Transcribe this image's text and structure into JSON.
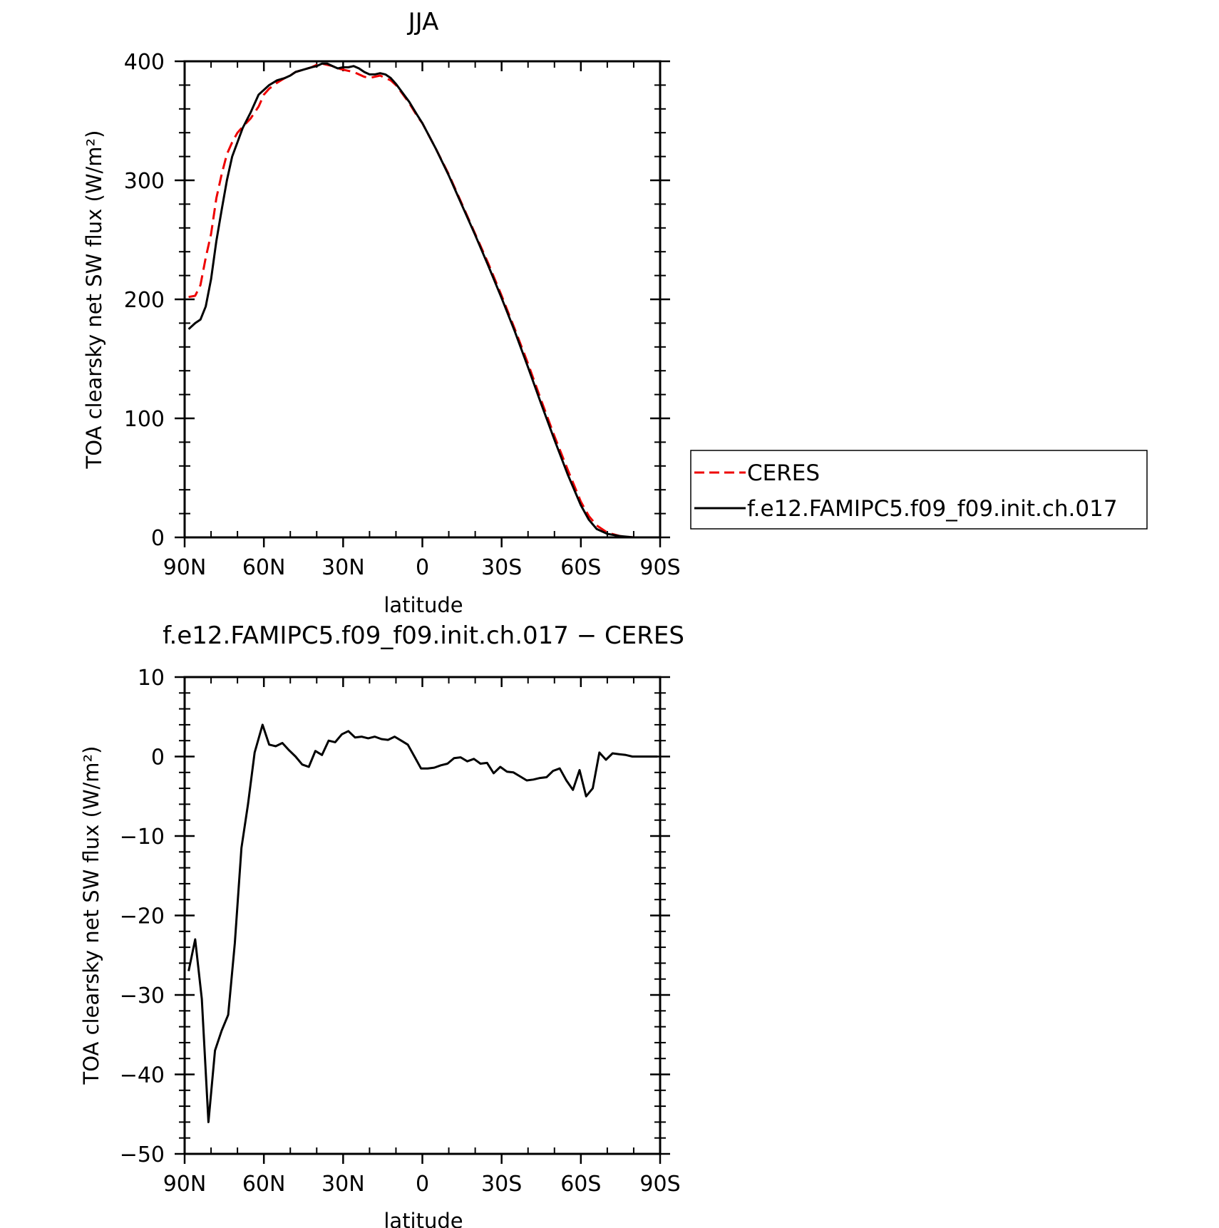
{
  "chart_data": [
    {
      "type": "line",
      "title": "JJA",
      "xlabel": "latitude",
      "ylabel": "TOA clearsky net SW flux (W/m²)",
      "xlim": [
        90,
        -90
      ],
      "ylim": [
        0,
        400
      ],
      "x_ticks": [
        90,
        60,
        30,
        0,
        -30,
        -60,
        -90
      ],
      "x_tick_labels": [
        "90N",
        "60N",
        "30N",
        "0",
        "30S",
        "60S",
        "90S"
      ],
      "y_ticks": [
        0,
        100,
        200,
        300,
        400
      ],
      "y_tick_labels": [
        "0",
        "100",
        "200",
        "300",
        "400"
      ],
      "legend": {
        "placement": "right"
      },
      "series": [
        {
          "name": "CERES",
          "color": "#ee0000",
          "style": "dashed",
          "x": [
            88.5,
            86,
            84,
            82,
            80,
            78,
            76,
            74,
            72,
            70,
            68,
            65,
            62,
            60,
            58,
            55,
            52,
            50,
            48,
            45,
            42,
            40,
            38,
            36,
            34,
            32,
            30,
            28,
            26,
            24,
            22,
            20,
            18,
            16,
            14,
            12,
            10,
            8,
            5,
            2,
            0,
            -5,
            -10,
            -15,
            -20,
            -25,
            -30,
            -35,
            -40,
            -45,
            -50,
            -55,
            -60,
            -63,
            -66,
            -70,
            -75,
            -80,
            -85,
            -89
          ],
          "values": [
            202,
            203,
            212,
            235,
            255,
            285,
            305,
            322,
            332,
            340,
            345,
            352,
            362,
            372,
            377,
            382,
            386,
            388,
            391,
            393,
            395,
            397,
            398,
            397,
            396,
            394,
            393,
            392,
            391,
            389,
            387,
            386,
            387,
            388,
            386,
            384,
            380,
            374,
            365,
            354,
            348,
            327,
            305,
            280,
            255,
            230,
            203,
            175,
            146,
            115,
            85,
            57,
            30,
            18,
            10,
            4,
            1,
            0,
            0,
            0
          ]
        },
        {
          "name": "f.e12.FAMIPC5.f09_f09.init.ch.017",
          "color": "#000000",
          "style": "solid",
          "x": [
            88.5,
            86,
            84,
            82,
            80,
            78,
            76,
            74,
            72,
            70,
            68,
            65,
            62,
            60,
            58,
            55,
            52,
            50,
            48,
            45,
            42,
            40,
            38,
            36,
            34,
            32,
            30,
            28,
            26,
            24,
            22,
            20,
            18,
            16,
            14,
            12,
            10,
            8,
            5,
            2,
            0,
            -5,
            -10,
            -15,
            -20,
            -25,
            -30,
            -35,
            -40,
            -45,
            -50,
            -55,
            -60,
            -63,
            -66,
            -70,
            -75,
            -80,
            -85,
            -89
          ],
          "values": [
            175,
            180,
            183,
            194,
            217,
            249,
            275,
            300,
            320,
            332,
            344,
            357,
            372,
            376,
            380,
            384,
            386,
            388,
            391,
            393,
            395,
            396,
            398,
            398,
            396,
            394,
            395,
            395,
            396,
            394,
            391,
            389,
            389,
            390,
            389,
            386,
            381,
            375,
            366,
            355,
            348,
            327,
            304,
            279,
            254,
            228,
            201,
            173,
            143,
            112,
            82,
            53,
            27,
            15,
            7,
            3,
            1,
            0,
            0,
            0
          ]
        }
      ]
    },
    {
      "type": "line",
      "title": "f.e12.FAMIPC5.f09_f09.init.ch.017 − CERES",
      "xlabel": "latitude",
      "ylabel": "TOA clearsky net SW flux (W/m²)",
      "xlim": [
        90,
        -90
      ],
      "ylim": [
        -50,
        10
      ],
      "x_ticks": [
        90,
        60,
        30,
        0,
        -30,
        -60,
        -90
      ],
      "x_tick_labels": [
        "90N",
        "60N",
        "30N",
        "0",
        "30S",
        "60S",
        "90S"
      ],
      "y_ticks": [
        10,
        0,
        -10,
        -20,
        -30,
        -40,
        -50
      ],
      "y_tick_labels": [
        "10",
        "0",
        "−10",
        "−20",
        "−30",
        "−40",
        "−50"
      ],
      "series": [
        {
          "color": "#000000",
          "style": "solid",
          "x": [
            88.5,
            86,
            83.5,
            81,
            78.5,
            76,
            73.5,
            71,
            68.5,
            66,
            63.5,
            60.5,
            58,
            55.5,
            53,
            50.5,
            48,
            45.5,
            43,
            40.5,
            38,
            35.5,
            33,
            30.5,
            28,
            25.5,
            23,
            20.5,
            18,
            15.5,
            13,
            10.5,
            8,
            5.5,
            3,
            0.5,
            -2,
            -4.5,
            -7,
            -9.5,
            -12,
            -14.5,
            -17,
            -19.5,
            -22,
            -24.5,
            -27,
            -29.5,
            -32,
            -34.5,
            -37,
            -39.5,
            -42,
            -44.5,
            -47,
            -49.5,
            -52,
            -54.5,
            -57,
            -59.5,
            -62,
            -64.5,
            -67,
            -69.5,
            -72,
            -74.5,
            -77,
            -79.5,
            -82,
            -84.5,
            -87,
            -89
          ],
          "values": [
            -27,
            -23,
            -30.5,
            -46,
            -37,
            -34.5,
            -32.5,
            -23.5,
            -11.5,
            -6,
            0.5,
            4,
            1.5,
            1.3,
            1.7,
            0.8,
            0,
            -1,
            -1.3,
            0.7,
            0.2,
            2,
            1.8,
            2.8,
            3.2,
            2.4,
            2.5,
            2.3,
            2.5,
            2.2,
            2.1,
            2.5,
            2,
            1.5,
            0,
            -1.5,
            -1.5,
            -1.4,
            -1.1,
            -0.9,
            -0.2,
            -0.1,
            -0.6,
            -0.3,
            -0.9,
            -0.8,
            -2.1,
            -1.3,
            -1.9,
            -2,
            -2.5,
            -3,
            -2.9,
            -2.7,
            -2.6,
            -1.8,
            -1.5,
            -3,
            -4.2,
            -1.7,
            -5,
            -4,
            0.5,
            -0.4,
            0.4,
            0.3,
            0.2,
            0,
            0,
            0,
            0,
            0
          ]
        }
      ]
    }
  ]
}
